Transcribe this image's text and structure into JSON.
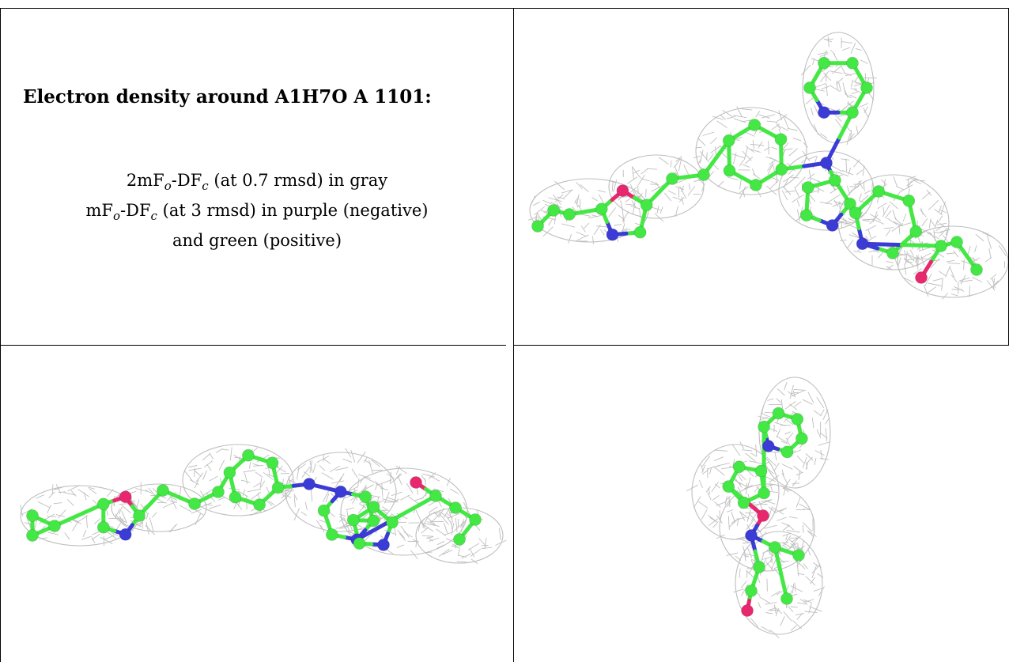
{
  "caption": {
    "title": "Electron density around A1H7O A 1101:",
    "line1": {
      "a": "2mF",
      "a_sub": "o",
      "b": "-DF",
      "b_sub": "c",
      "rest": " (at 0.7 rmsd) in gray"
    },
    "line2": {
      "a": "mF",
      "a_sub": "o",
      "b": "-DF",
      "b_sub": "c",
      "rest": " (at 3 rmsd) in purple (negative)"
    },
    "line3": "and green (positive)"
  },
  "colors": {
    "mesh": "#b8b8b8",
    "carbon": "#44e844",
    "nitrogen": "#3b3bd6",
    "oxygen": "#e8286e",
    "rule": "#000000"
  },
  "panels": [
    {
      "view": "top-view"
    },
    {
      "view": "side-view"
    },
    {
      "view": "end-view"
    }
  ]
}
